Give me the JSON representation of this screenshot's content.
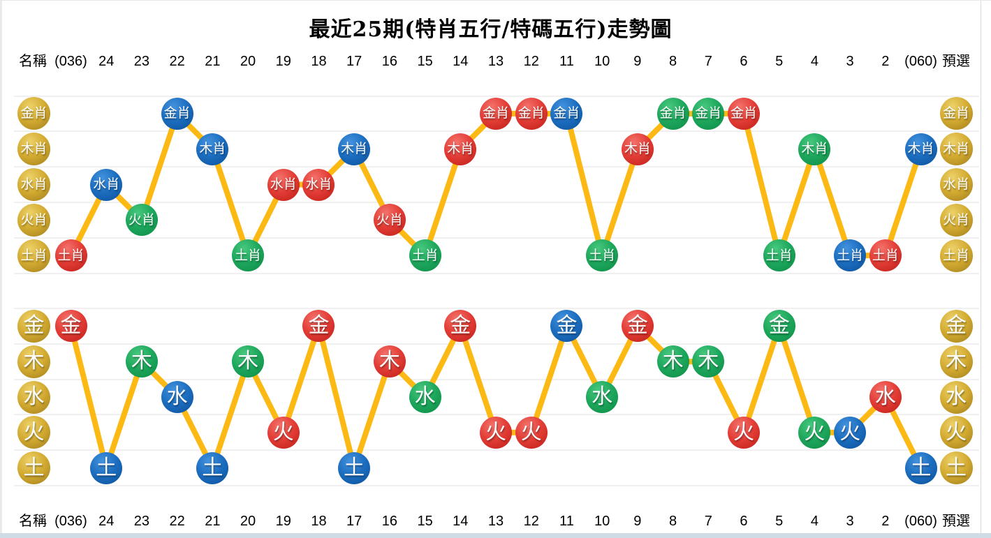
{
  "page": {
    "title": "最近25期(特肖五行/特碼五行)走勢圖",
    "name_label": "名稱",
    "preselect_label": "預選"
  },
  "columns": [
    "(036)",
    "24",
    "23",
    "22",
    "21",
    "20",
    "19",
    "18",
    "17",
    "16",
    "15",
    "14",
    "13",
    "12",
    "11",
    "10",
    "9",
    "8",
    "7",
    "6",
    "5",
    "4",
    "3",
    "2",
    "(060)"
  ],
  "colors": {
    "gold": "#d3ab31",
    "red": "#e23c35",
    "blue": "#1c6dbf",
    "green": "#1da75c",
    "line": "#fdb913",
    "gridline": "#f0f0f0",
    "scrollbar": "#cfdce6"
  },
  "chart_data": [
    {
      "type": "line",
      "title": "特肖五行",
      "rows": [
        "金肖",
        "木肖",
        "水肖",
        "火肖",
        "土肖"
      ],
      "categories": [
        "(036)",
        "24",
        "23",
        "22",
        "21",
        "20",
        "19",
        "18",
        "17",
        "16",
        "15",
        "14",
        "13",
        "12",
        "11",
        "10",
        "9",
        "8",
        "7",
        "6",
        "5",
        "4",
        "3",
        "2",
        "(060)"
      ],
      "points": [
        {
          "col": "(036)",
          "row": "土肖",
          "row_index": 4,
          "color": "red"
        },
        {
          "col": "24",
          "row": "水肖",
          "row_index": 2,
          "color": "blue"
        },
        {
          "col": "23",
          "row": "火肖",
          "row_index": 3,
          "color": "green"
        },
        {
          "col": "22",
          "row": "金肖",
          "row_index": 0,
          "color": "blue"
        },
        {
          "col": "21",
          "row": "木肖",
          "row_index": 1,
          "color": "blue"
        },
        {
          "col": "20",
          "row": "土肖",
          "row_index": 4,
          "color": "green"
        },
        {
          "col": "19",
          "row": "水肖",
          "row_index": 2,
          "color": "red"
        },
        {
          "col": "18",
          "row": "水肖",
          "row_index": 2,
          "color": "red"
        },
        {
          "col": "17",
          "row": "木肖",
          "row_index": 1,
          "color": "blue"
        },
        {
          "col": "16",
          "row": "火肖",
          "row_index": 3,
          "color": "red"
        },
        {
          "col": "15",
          "row": "土肖",
          "row_index": 4,
          "color": "green"
        },
        {
          "col": "14",
          "row": "木肖",
          "row_index": 1,
          "color": "red"
        },
        {
          "col": "13",
          "row": "金肖",
          "row_index": 0,
          "color": "red"
        },
        {
          "col": "12",
          "row": "金肖",
          "row_index": 0,
          "color": "red"
        },
        {
          "col": "11",
          "row": "金肖",
          "row_index": 0,
          "color": "blue"
        },
        {
          "col": "10",
          "row": "土肖",
          "row_index": 4,
          "color": "green"
        },
        {
          "col": "9",
          "row": "木肖",
          "row_index": 1,
          "color": "red"
        },
        {
          "col": "8",
          "row": "金肖",
          "row_index": 0,
          "color": "green"
        },
        {
          "col": "7",
          "row": "金肖",
          "row_index": 0,
          "color": "green"
        },
        {
          "col": "6",
          "row": "金肖",
          "row_index": 0,
          "color": "red"
        },
        {
          "col": "5",
          "row": "土肖",
          "row_index": 4,
          "color": "green"
        },
        {
          "col": "4",
          "row": "木肖",
          "row_index": 1,
          "color": "green"
        },
        {
          "col": "3",
          "row": "土肖",
          "row_index": 4,
          "color": "blue"
        },
        {
          "col": "2",
          "row": "土肖",
          "row_index": 4,
          "color": "red"
        },
        {
          "col": "(060)",
          "row": "木肖",
          "row_index": 1,
          "color": "blue"
        }
      ]
    },
    {
      "type": "line",
      "title": "特碼五行",
      "rows": [
        "金",
        "木",
        "水",
        "火",
        "土"
      ],
      "categories": [
        "(036)",
        "24",
        "23",
        "22",
        "21",
        "20",
        "19",
        "18",
        "17",
        "16",
        "15",
        "14",
        "13",
        "12",
        "11",
        "10",
        "9",
        "8",
        "7",
        "6",
        "5",
        "4",
        "3",
        "2",
        "(060)"
      ],
      "points": [
        {
          "col": "(036)",
          "row": "金",
          "row_index": 0,
          "color": "red"
        },
        {
          "col": "24",
          "row": "土",
          "row_index": 4,
          "color": "blue"
        },
        {
          "col": "23",
          "row": "木",
          "row_index": 1,
          "color": "green"
        },
        {
          "col": "22",
          "row": "水",
          "row_index": 2,
          "color": "blue"
        },
        {
          "col": "21",
          "row": "土",
          "row_index": 4,
          "color": "blue"
        },
        {
          "col": "20",
          "row": "木",
          "row_index": 1,
          "color": "green"
        },
        {
          "col": "19",
          "row": "火",
          "row_index": 3,
          "color": "red"
        },
        {
          "col": "18",
          "row": "金",
          "row_index": 0,
          "color": "red"
        },
        {
          "col": "17",
          "row": "土",
          "row_index": 4,
          "color": "blue"
        },
        {
          "col": "16",
          "row": "木",
          "row_index": 1,
          "color": "red"
        },
        {
          "col": "15",
          "row": "水",
          "row_index": 2,
          "color": "green"
        },
        {
          "col": "14",
          "row": "金",
          "row_index": 0,
          "color": "red"
        },
        {
          "col": "13",
          "row": "火",
          "row_index": 3,
          "color": "red"
        },
        {
          "col": "12",
          "row": "火",
          "row_index": 3,
          "color": "red"
        },
        {
          "col": "11",
          "row": "金",
          "row_index": 0,
          "color": "blue"
        },
        {
          "col": "10",
          "row": "水",
          "row_index": 2,
          "color": "green"
        },
        {
          "col": "9",
          "row": "金",
          "row_index": 0,
          "color": "red"
        },
        {
          "col": "8",
          "row": "木",
          "row_index": 1,
          "color": "green"
        },
        {
          "col": "7",
          "row": "木",
          "row_index": 1,
          "color": "green"
        },
        {
          "col": "6",
          "row": "火",
          "row_index": 3,
          "color": "red"
        },
        {
          "col": "5",
          "row": "金",
          "row_index": 0,
          "color": "green"
        },
        {
          "col": "4",
          "row": "火",
          "row_index": 3,
          "color": "green"
        },
        {
          "col": "3",
          "row": "火",
          "row_index": 3,
          "color": "blue"
        },
        {
          "col": "2",
          "row": "水",
          "row_index": 2,
          "color": "red"
        },
        {
          "col": "(060)",
          "row": "土",
          "row_index": 4,
          "color": "blue"
        }
      ]
    }
  ]
}
